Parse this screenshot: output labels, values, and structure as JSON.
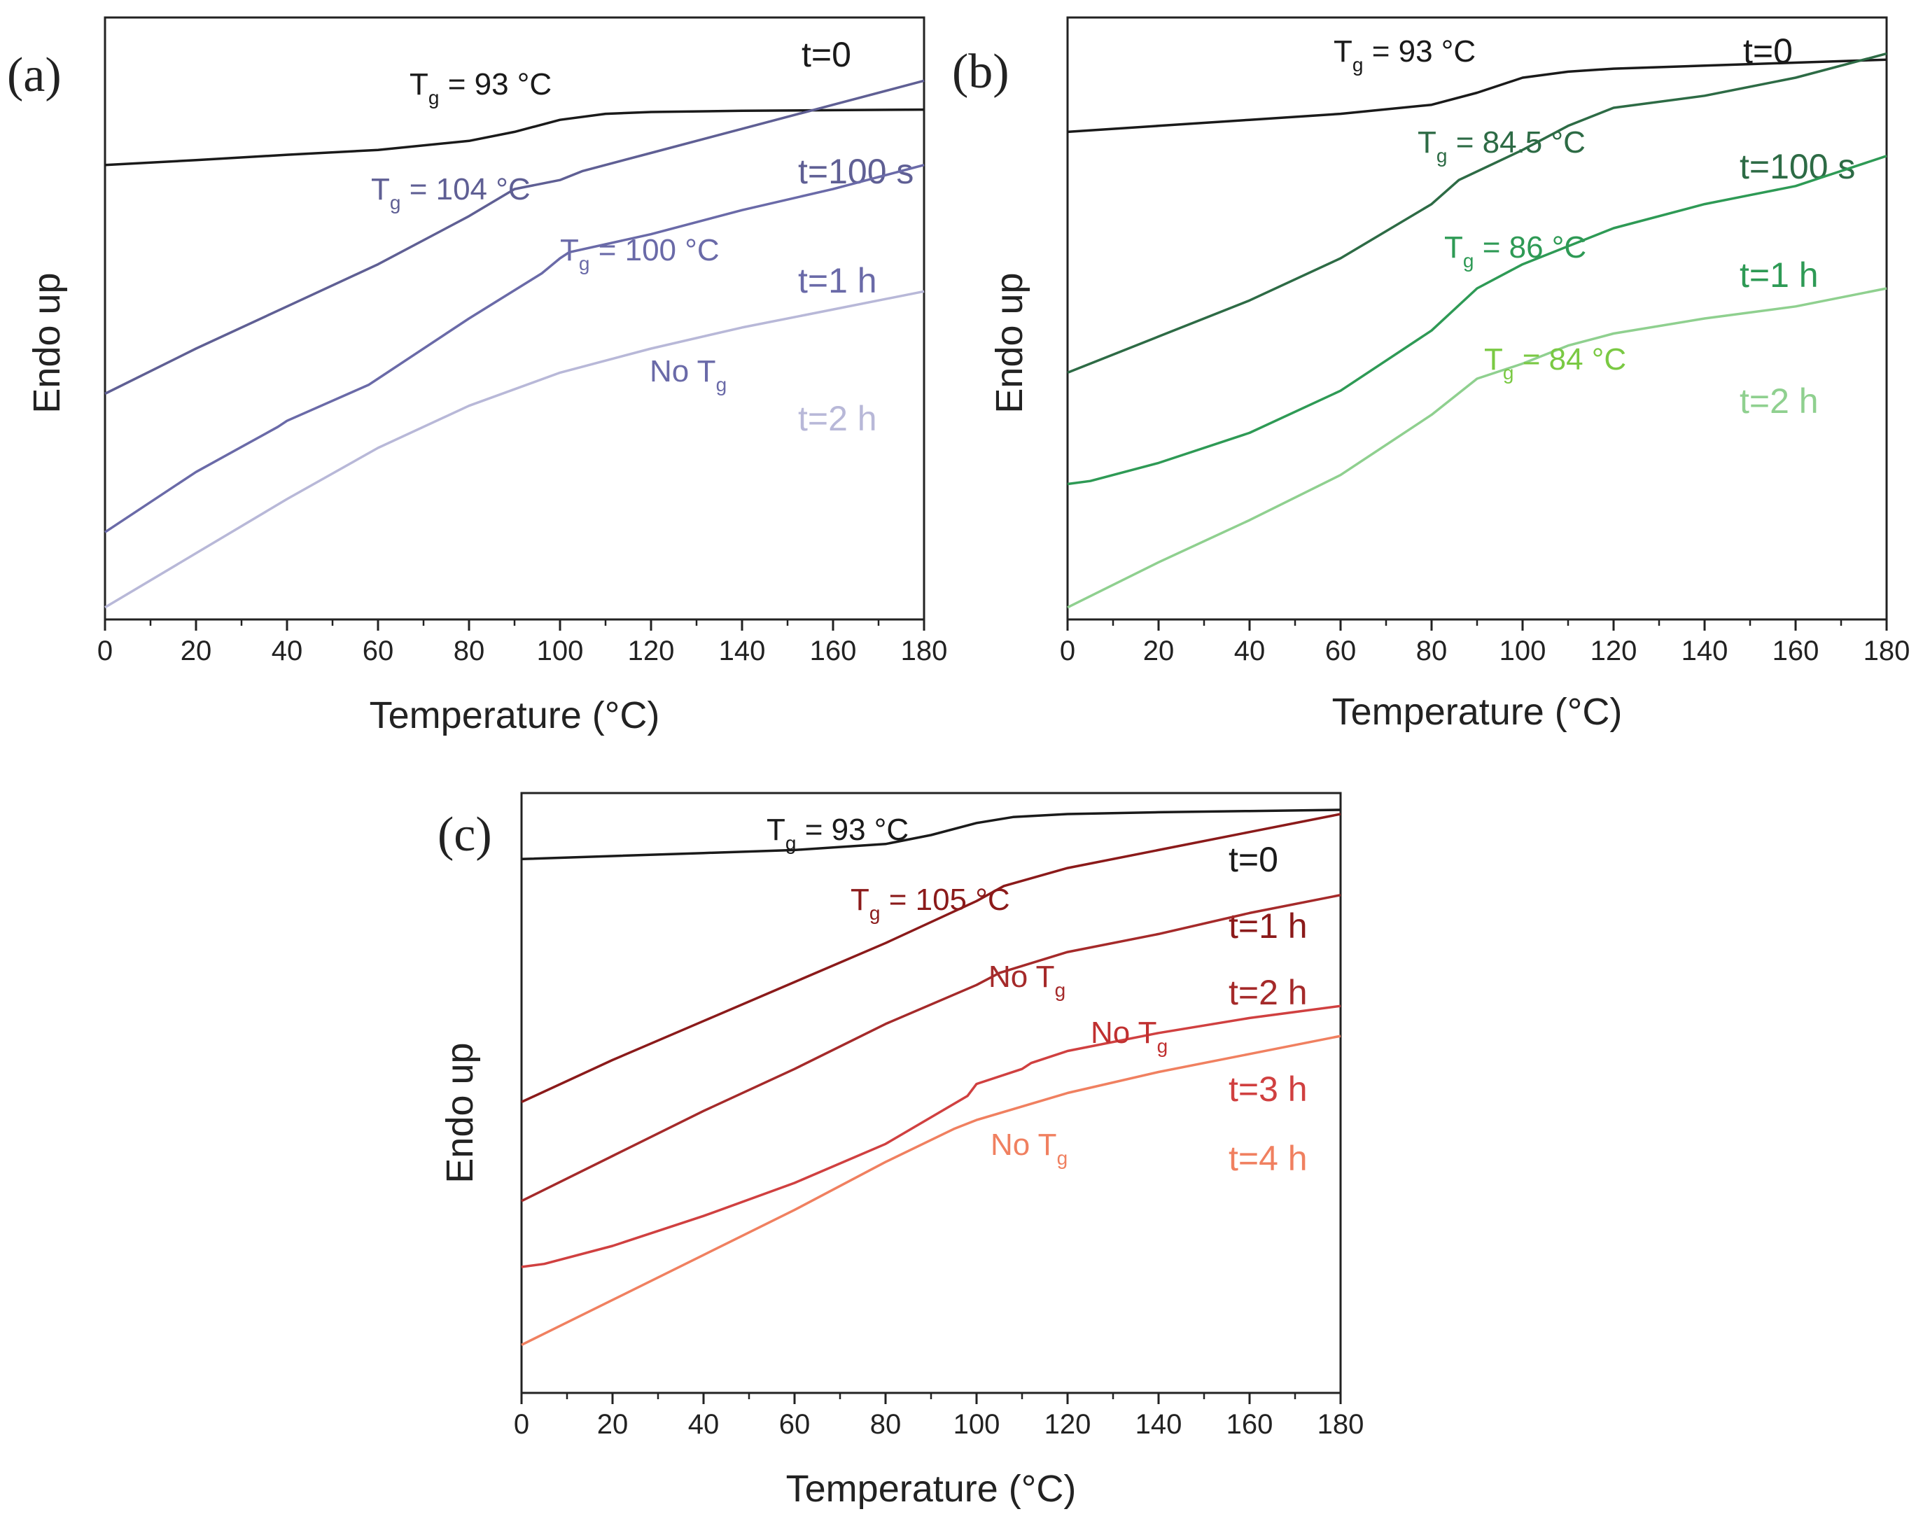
{
  "chart_data": [
    {
      "type": "line",
      "panel_label": "(a)",
      "xlabel": "Temperature (°C)",
      "ylabel": "Endo up",
      "xlim": [
        0,
        180
      ],
      "ylim": [
        0,
        10
      ],
      "x_ticks": [
        "0",
        "20",
        "40",
        "60",
        "80",
        "100",
        "120",
        "140",
        "160",
        "180"
      ],
      "series": [
        {
          "name": "t=0",
          "color": "#1a1a1a",
          "x": [
            0,
            20,
            40,
            60,
            80,
            90,
            100,
            110,
            120,
            140,
            160,
            180
          ],
          "y": [
            7.55,
            7.63,
            7.72,
            7.8,
            7.95,
            8.1,
            8.3,
            8.4,
            8.43,
            8.45,
            8.46,
            8.47
          ]
        },
        {
          "name": "t=100 s",
          "color": "#5f5f94",
          "x": [
            0,
            20,
            40,
            60,
            80,
            90,
            100,
            105,
            110,
            120,
            140,
            160,
            180
          ],
          "y": [
            3.75,
            4.5,
            5.2,
            5.9,
            6.7,
            7.15,
            7.3,
            7.45,
            7.55,
            7.75,
            8.15,
            8.55,
            8.95
          ]
        },
        {
          "name": "t=1 h",
          "color": "#6a6aa8",
          "x": [
            0,
            20,
            38,
            40,
            58,
            60,
            80,
            96,
            100,
            102,
            120,
            140,
            160,
            180
          ],
          "y": [
            1.45,
            2.45,
            3.2,
            3.3,
            3.9,
            4.0,
            5.0,
            5.75,
            6.0,
            6.1,
            6.4,
            6.8,
            7.15,
            7.55
          ]
        },
        {
          "name": "t=2 h",
          "color": "#b8b8d8",
          "x": [
            0,
            20,
            40,
            60,
            80,
            100,
            120,
            140,
            160,
            180
          ],
          "y": [
            0.2,
            1.1,
            2.0,
            2.85,
            3.55,
            4.1,
            4.5,
            4.85,
            5.15,
            5.45
          ]
        }
      ],
      "annotations": [
        {
          "main": "T",
          "sub": "g",
          "rest": " = 93 °C",
          "color": "#1a1a1a"
        },
        {
          "main": "T",
          "sub": "g",
          "rest": " = 104 °C",
          "color": "#5f5f94"
        },
        {
          "main": "T",
          "sub": "g",
          "rest": " = 100 °C",
          "color": "#6a6aa8"
        },
        {
          "main": "No T",
          "sub": "g",
          "rest": "",
          "color": "#6a6aa8"
        }
      ]
    },
    {
      "type": "line",
      "panel_label": "(b)",
      "xlabel": "Temperature (°C)",
      "ylabel": "Endo up",
      "xlim": [
        0,
        180
      ],
      "ylim": [
        0,
        10
      ],
      "x_ticks": [
        "0",
        "20",
        "40",
        "60",
        "80",
        "100",
        "120",
        "140",
        "160",
        "180"
      ],
      "series": [
        {
          "name": "t=0",
          "color": "#1a1a1a",
          "x": [
            0,
            20,
            40,
            60,
            80,
            90,
            100,
            110,
            120,
            140,
            160,
            180
          ],
          "y": [
            8.1,
            8.2,
            8.3,
            8.4,
            8.55,
            8.75,
            9.0,
            9.1,
            9.15,
            9.2,
            9.25,
            9.3
          ]
        },
        {
          "name": "t=100 s",
          "color": "#2d6b45",
          "x": [
            0,
            20,
            40,
            60,
            80,
            86,
            100,
            110,
            120,
            140,
            160,
            180
          ],
          "y": [
            4.1,
            4.7,
            5.3,
            6.0,
            6.9,
            7.3,
            7.8,
            8.2,
            8.5,
            8.7,
            9.0,
            9.4
          ]
        },
        {
          "name": "t=1 h",
          "color": "#2e9a55",
          "x": [
            0,
            5,
            20,
            40,
            60,
            80,
            90,
            100,
            120,
            140,
            150,
            160,
            180
          ],
          "y": [
            2.25,
            2.3,
            2.6,
            3.1,
            3.8,
            4.8,
            5.5,
            5.9,
            6.5,
            6.9,
            7.05,
            7.2,
            7.7
          ]
        },
        {
          "name": "t=2 h",
          "color": "#8fd08f",
          "x": [
            0,
            20,
            40,
            60,
            80,
            90,
            100,
            110,
            120,
            140,
            160,
            180
          ],
          "y": [
            0.2,
            0.95,
            1.65,
            2.4,
            3.4,
            4.0,
            4.25,
            4.55,
            4.75,
            5.0,
            5.2,
            5.5
          ]
        }
      ],
      "annotations": [
        {
          "main": "T",
          "sub": "g",
          "rest": " = 93 °C",
          "color": "#1a1a1a"
        },
        {
          "main": "T",
          "sub": "g",
          "rest": " = 84.5 °C",
          "color": "#2d6b45"
        },
        {
          "main": "T",
          "sub": "g",
          "rest": " = 86 °C",
          "color": "#2e9a55"
        },
        {
          "main": "T",
          "sub": "g",
          "rest": " = 84 °C",
          "color": "#7ac943"
        }
      ]
    },
    {
      "type": "line",
      "panel_label": "(c)",
      "xlabel": "Temperature (°C)",
      "ylabel": "Endo up",
      "xlim": [
        0,
        180
      ],
      "ylim": [
        0,
        10
      ],
      "x_ticks": [
        "0",
        "20",
        "40",
        "60",
        "80",
        "100",
        "120",
        "140",
        "160",
        "180"
      ],
      "series": [
        {
          "name": "t=0",
          "color": "#1a1a1a",
          "x": [
            0,
            20,
            40,
            60,
            80,
            90,
            100,
            108,
            120,
            140,
            160,
            180
          ],
          "y": [
            8.9,
            8.95,
            9.0,
            9.05,
            9.15,
            9.3,
            9.5,
            9.6,
            9.65,
            9.68,
            9.7,
            9.72
          ]
        },
        {
          "name": "t=1 h",
          "color": "#8b1a1a",
          "x": [
            0,
            20,
            40,
            60,
            80,
            100,
            106,
            120,
            140,
            160,
            180
          ],
          "y": [
            4.85,
            5.55,
            6.2,
            6.85,
            7.5,
            8.2,
            8.45,
            8.75,
            9.05,
            9.35,
            9.65
          ]
        },
        {
          "name": "t=2 h",
          "color": "#a52a2a",
          "x": [
            0,
            20,
            40,
            60,
            80,
            100,
            105,
            120,
            140,
            160,
            180
          ],
          "y": [
            3.2,
            3.95,
            4.7,
            5.4,
            6.15,
            6.8,
            7.0,
            7.35,
            7.65,
            8.0,
            8.3
          ]
        },
        {
          "name": "t=3 h",
          "color": "#d04040",
          "x": [
            0,
            5,
            20,
            40,
            60,
            80,
            98,
            100,
            110,
            112,
            120,
            140,
            160,
            180
          ],
          "y": [
            2.1,
            2.15,
            2.45,
            2.95,
            3.5,
            4.15,
            4.95,
            5.15,
            5.4,
            5.5,
            5.7,
            6.0,
            6.25,
            6.45
          ]
        },
        {
          "name": "t=4 h",
          "color": "#f08060",
          "x": [
            0,
            20,
            40,
            60,
            80,
            95,
            100,
            120,
            140,
            160,
            180
          ],
          "y": [
            0.8,
            1.55,
            2.3,
            3.05,
            3.85,
            4.4,
            4.55,
            5.0,
            5.35,
            5.65,
            5.95
          ]
        }
      ],
      "annotations": [
        {
          "main": "T",
          "sub": "g",
          "rest": " = 93 °C",
          "color": "#1a1a1a"
        },
        {
          "main": "T",
          "sub": "g",
          "rest": " = 105 °C",
          "color": "#8b1a1a"
        },
        {
          "main": "No T",
          "sub": "g",
          "rest": "",
          "color": "#a52a2a"
        },
        {
          "main": "No T",
          "sub": "g",
          "rest": "",
          "color": "#c03030"
        },
        {
          "main": "No T",
          "sub": "g",
          "rest": "",
          "color": "#f08060"
        }
      ]
    }
  ]
}
